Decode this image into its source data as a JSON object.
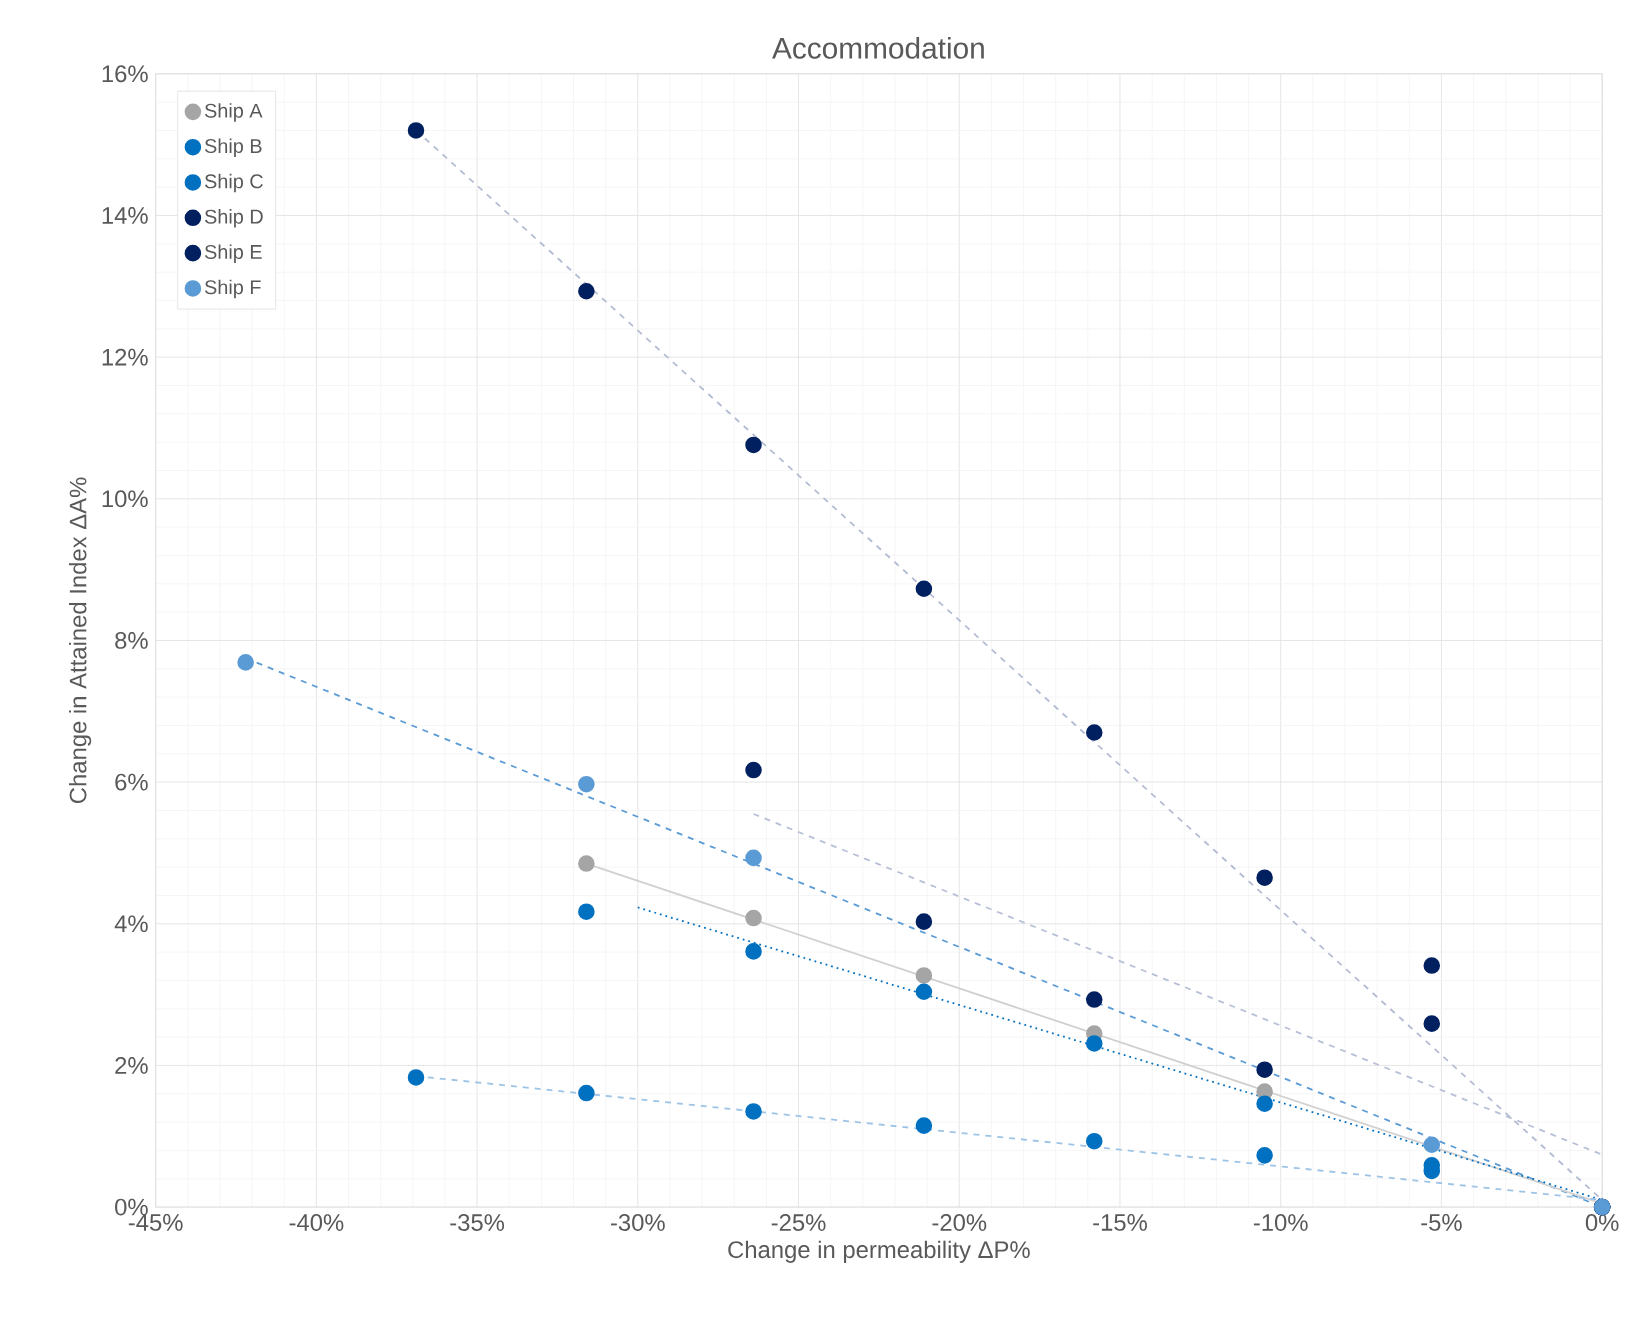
{
  "chart_data": {
    "type": "scatter",
    "title": "Accommodation",
    "xlabel": "Change in permeability  ΔP%",
    "ylabel": "Change in Attained Index  ΔA%",
    "xlim": [
      -45,
      0
    ],
    "ylim": [
      0,
      16
    ],
    "xticks": [
      {
        "value": -45,
        "label": "-45%"
      },
      {
        "value": -40,
        "label": "-40%"
      },
      {
        "value": -35,
        "label": "-35%"
      },
      {
        "value": -30,
        "label": "-30%"
      },
      {
        "value": -25,
        "label": "-25%"
      },
      {
        "value": -20,
        "label": "-20%"
      },
      {
        "value": -15,
        "label": "-15%"
      },
      {
        "value": -10,
        "label": "-10%"
      },
      {
        "value": -5,
        "label": "-5%"
      },
      {
        "value": 0,
        "label": "0%"
      }
    ],
    "yticks": [
      {
        "value": 0,
        "label": "0%"
      },
      {
        "value": 2,
        "label": "2%"
      },
      {
        "value": 4,
        "label": "4%"
      },
      {
        "value": 6,
        "label": "6%"
      },
      {
        "value": 8,
        "label": "8%"
      },
      {
        "value": 10,
        "label": "10%"
      },
      {
        "value": 12,
        "label": "12%"
      },
      {
        "value": 14,
        "label": "14%"
      },
      {
        "value": 16,
        "label": "16%"
      }
    ],
    "grid": true,
    "legend": "top left",
    "series": [
      {
        "type": "line",
        "marker": "none",
        "line_style": "dashed",
        "color": "#b4bcd4",
        "x": [
          -36.9,
          0
        ],
        "values": [
          15.2,
          0.1
        ]
      },
      {
        "type": "line",
        "marker": "none",
        "line_style": "dashed",
        "color": "#b8c0d8",
        "x": [
          -26.4,
          0
        ],
        "values": [
          5.55,
          0.74
        ]
      },
      {
        "type": "line",
        "line_style": "dashed",
        "color": "#5b9bd5",
        "x": [
          -42.2,
          0
        ],
        "values": [
          7.75,
          0.0
        ]
      },
      {
        "type": "line",
        "line_style": "solid",
        "color": "#d0d0d0",
        "x": [
          -31.6,
          0
        ],
        "values": [
          4.85,
          0.05
        ]
      },
      {
        "type": "line",
        "marker": "none",
        "line_style": "dotted",
        "color": "#0070c0",
        "x": [
          -30.0,
          0
        ],
        "values": [
          4.23,
          0.1
        ]
      },
      {
        "type": "line",
        "marker": "none",
        "line_style": "dashed",
        "color": "#9dc3e6",
        "x": [
          -36.9,
          0
        ],
        "values": [
          1.85,
          0.1
        ]
      },
      {
        "name": "Ship A",
        "marker": "circle",
        "color": "#a5a5a5",
        "x": [
          -31.6,
          -26.4,
          -21.1,
          -15.8,
          -10.5,
          -5.3,
          0
        ],
        "values": [
          4.85,
          4.08,
          3.27,
          2.45,
          1.63,
          null,
          0
        ]
      },
      {
        "name": "Ship B",
        "marker": "circle",
        "color": "#0070c0",
        "x": [
          -36.9,
          -31.6,
          -26.4,
          -21.1,
          -15.8,
          -10.5,
          -5.3,
          0
        ],
        "values": [
          1.83,
          1.61,
          1.35,
          1.15,
          0.93,
          0.73,
          0.51,
          0
        ]
      },
      {
        "name": "Ship C",
        "marker": "circle",
        "color": "#0070c0",
        "x": [
          -31.6,
          -26.4,
          -21.1,
          -15.8,
          -10.5,
          -5.3,
          0
        ],
        "values": [
          4.17,
          3.61,
          3.04,
          2.31,
          1.46,
          0.59,
          0
        ]
      },
      {
        "name": "Ship D",
        "marker": "circle",
        "color": "#002060",
        "x": [
          -26.4,
          -21.1,
          -15.8,
          -10.5,
          -5.3,
          0
        ],
        "values": [
          6.17,
          4.03,
          2.93,
          1.94,
          3.41,
          0
        ]
      },
      {
        "name": "Ship E",
        "marker": "circle",
        "color": "#002060",
        "x": [
          -36.9,
          -31.6,
          -26.4,
          -21.1,
          -15.8,
          -10.5,
          -5.3,
          0
        ],
        "values": [
          15.2,
          12.93,
          10.76,
          8.73,
          6.7,
          4.65,
          2.59,
          0
        ]
      },
      {
        "name": "Ship F",
        "marker": "circle",
        "color": "#5b9bd5",
        "x": [
          -42.2,
          -31.6,
          -26.4,
          -5.3,
          0
        ],
        "values": [
          7.69,
          5.97,
          4.93,
          0.88,
          0
        ]
      }
    ]
  }
}
